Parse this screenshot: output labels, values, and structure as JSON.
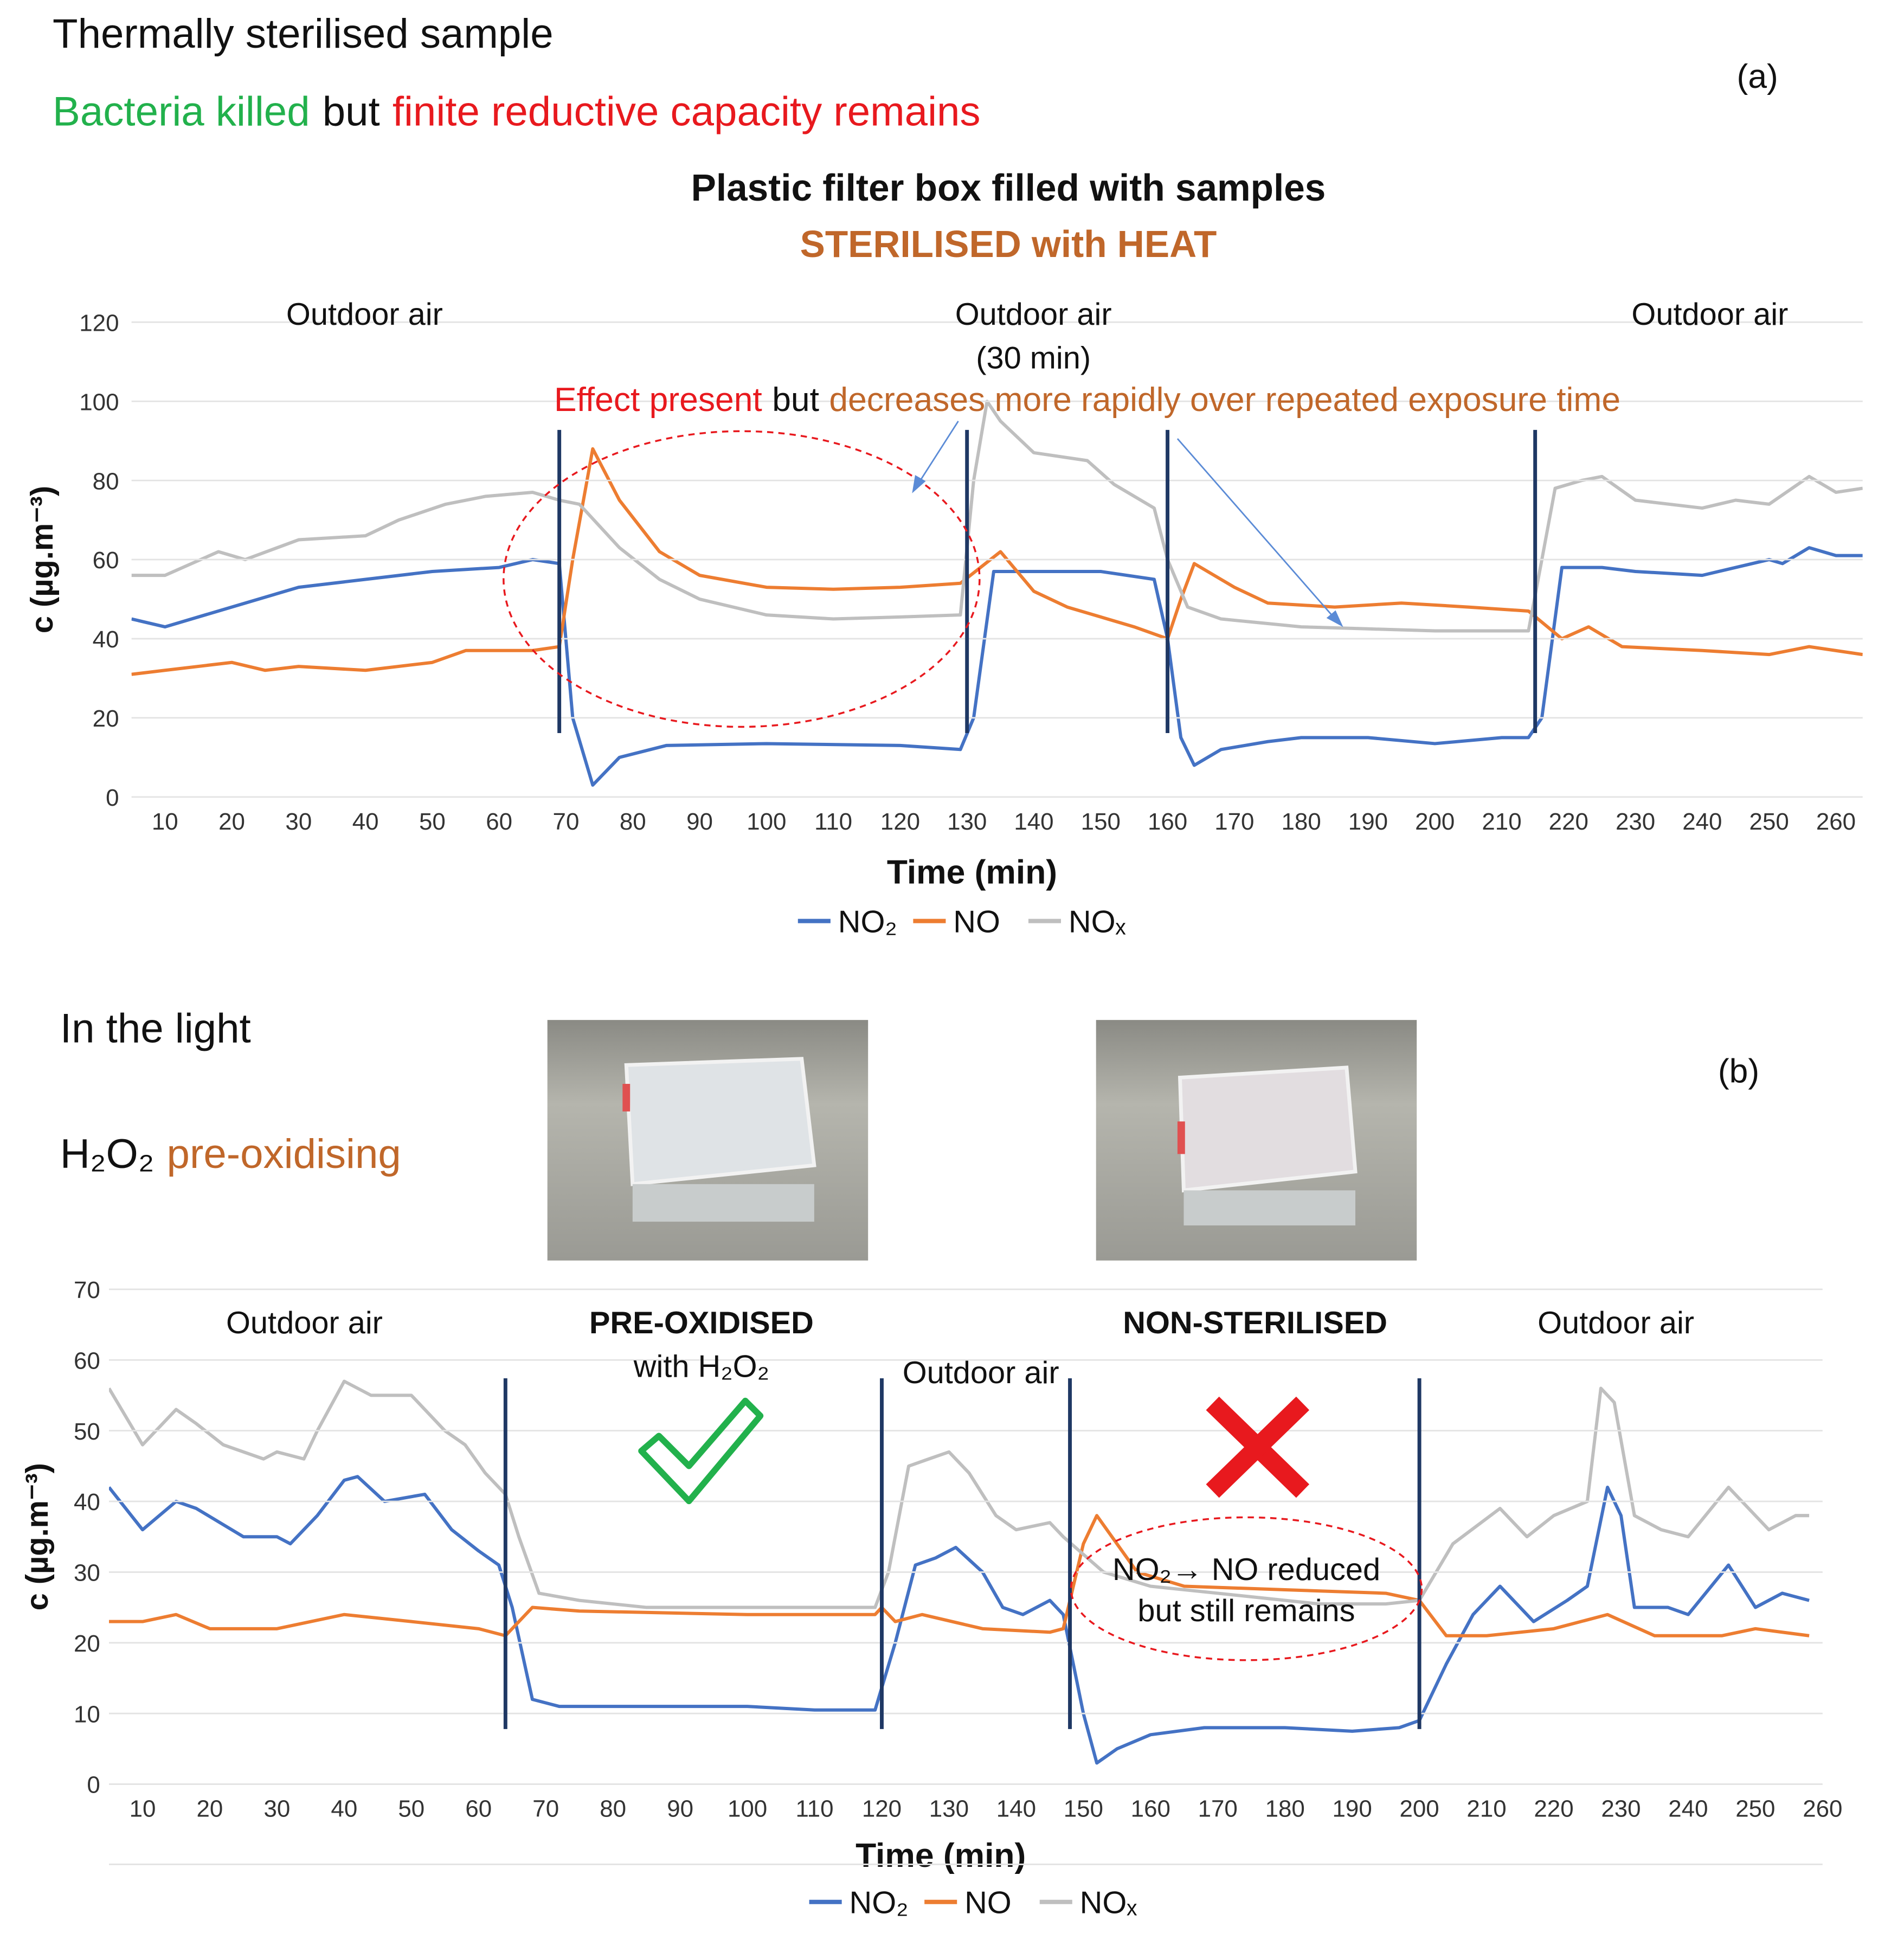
{
  "chart_data": [
    {
      "type": "line",
      "panel_label": "(a)",
      "heading": "Thermally sterilised sample",
      "subheading": [
        "Bacteria killed",
        "but",
        "finite reductive capacity remains"
      ],
      "title": "Plastic filter box filled with samples",
      "subtitle": "STERILISED with HEAT",
      "annotations": [
        "Outdoor air",
        "Outdoor air",
        "(30 min)",
        "Outdoor air"
      ],
      "effect_note": [
        "Effect present",
        "but",
        "decreases more rapidly over repeated exposure time"
      ],
      "xlabel": "Time (min)",
      "ylabel": "c (µg.m⁻³)",
      "xlim": [
        5,
        264
      ],
      "xticks": [
        10,
        20,
        30,
        40,
        50,
        60,
        70,
        80,
        90,
        100,
        110,
        120,
        130,
        140,
        150,
        160,
        170,
        180,
        190,
        200,
        210,
        220,
        230,
        240,
        250,
        260
      ],
      "ylim": [
        0,
        120
      ],
      "yticks": [
        0,
        20,
        40,
        60,
        80,
        100,
        120
      ],
      "grid": true,
      "vlines": [
        69,
        130,
        160,
        215
      ],
      "series": [
        {
          "name": "NO₂",
          "color": "#4472c4",
          "x": [
            5,
            10,
            20,
            30,
            40,
            50,
            60,
            65,
            69,
            71,
            74,
            78,
            85,
            100,
            120,
            129,
            131,
            134,
            140,
            150,
            158,
            160,
            162,
            164,
            168,
            175,
            180,
            190,
            200,
            210,
            214,
            216,
            219,
            225,
            230,
            240,
            250,
            252,
            256,
            260,
            264
          ],
          "values": [
            45,
            43,
            48,
            53,
            55,
            57,
            58,
            60,
            59,
            20,
            3,
            10,
            13,
            13.5,
            13,
            12,
            20,
            57,
            57,
            57,
            55,
            40,
            15,
            8,
            12,
            14,
            15,
            15,
            13.5,
            15,
            15,
            20,
            58,
            58,
            57,
            56,
            60,
            59,
            63,
            61,
            61
          ]
        },
        {
          "name": "NO",
          "color": "#ed7d31",
          "x": [
            5,
            10,
            20,
            25,
            30,
            40,
            50,
            55,
            65,
            69,
            71,
            74,
            78,
            84,
            90,
            100,
            110,
            120,
            129,
            132,
            135,
            140,
            145,
            155,
            160,
            162,
            164,
            170,
            175,
            185,
            195,
            205,
            214,
            219,
            223,
            228,
            240,
            250,
            256,
            264
          ],
          "values": [
            31,
            32,
            34,
            32,
            33,
            32,
            34,
            37,
            37,
            38,
            60,
            88,
            75,
            62,
            56,
            53,
            52.5,
            53,
            54,
            58,
            62,
            52,
            48,
            43,
            40,
            50,
            59,
            53,
            49,
            48,
            49,
            48,
            47,
            40,
            43,
            38,
            37,
            36,
            38,
            36
          ]
        },
        {
          "name": "NOₓ",
          "color": "#bfbfbf",
          "x": [
            5,
            10,
            18,
            22,
            30,
            40,
            45,
            52,
            58,
            65,
            69,
            72,
            78,
            84,
            90,
            100,
            110,
            120,
            129,
            131,
            133,
            135,
            140,
            148,
            152,
            158,
            160,
            163,
            168,
            180,
            190,
            200,
            210,
            214,
            216,
            218,
            222,
            225,
            230,
            240,
            245,
            250,
            256,
            260,
            264
          ],
          "values": [
            56,
            56,
            62,
            60,
            65,
            66,
            70,
            74,
            76,
            77,
            75,
            74,
            63,
            55,
            50,
            46,
            45,
            45.5,
            46,
            80,
            100,
            95,
            87,
            85,
            79,
            73,
            60,
            48,
            45,
            43,
            42.5,
            42,
            42,
            42,
            60,
            78,
            80,
            81,
            75,
            73,
            75,
            74,
            81,
            77,
            78
          ]
        }
      ]
    },
    {
      "type": "line",
      "panel_label": "(b)",
      "heading": "In the light",
      "subheading": [
        "H₂O₂",
        "pre-oxidising"
      ],
      "annotations": [
        "Outdoor air",
        "PRE-OXIDISED",
        "with H₂O₂",
        "Outdoor air",
        "NON-STERILISED",
        "Outdoor air",
        "NO₂→ NO reduced",
        "but still remains"
      ],
      "xlabel": "Time (min)",
      "ylabel": "c (µg.m⁻³)",
      "xlim": [
        5,
        260
      ],
      "xticks": [
        10,
        20,
        30,
        40,
        50,
        60,
        70,
        80,
        90,
        100,
        110,
        120,
        130,
        140,
        150,
        160,
        170,
        180,
        190,
        200,
        210,
        220,
        230,
        240,
        250,
        260
      ],
      "ylim": [
        0,
        70
      ],
      "yticks": [
        0,
        10,
        20,
        30,
        40,
        50,
        60,
        70
      ],
      "grid": true,
      "vlines": [
        64,
        120,
        148,
        200
      ],
      "series": [
        {
          "name": "NO₂",
          "color": "#4472c4",
          "x": [
            5,
            10,
            15,
            18,
            25,
            30,
            32,
            36,
            40,
            42,
            46,
            52,
            56,
            60,
            63,
            65,
            68,
            72,
            90,
            100,
            110,
            119,
            122,
            125,
            128,
            131,
            135,
            138,
            141,
            145,
            147,
            150,
            152,
            155,
            160,
            168,
            180,
            190,
            197,
            200,
            204,
            208,
            212,
            217,
            222,
            225,
            228,
            230,
            232,
            237,
            240,
            246,
            250,
            254,
            258
          ],
          "values": [
            42,
            36,
            40,
            39,
            35,
            35,
            34,
            38,
            43,
            43.5,
            40,
            41,
            36,
            33,
            31,
            25,
            12,
            11,
            11,
            11,
            10.5,
            10.5,
            20,
            31,
            32,
            33.5,
            30,
            25,
            24,
            26,
            24,
            10,
            3,
            5,
            7,
            8,
            8,
            7.5,
            8,
            9,
            17,
            24,
            28,
            23,
            26,
            28,
            42,
            38,
            25,
            25,
            24,
            31,
            25,
            27,
            26
          ]
        },
        {
          "name": "NO",
          "color": "#ed7d31",
          "x": [
            5,
            10,
            15,
            20,
            30,
            40,
            50,
            60,
            64,
            68,
            75,
            100,
            119,
            120,
            122,
            126,
            135,
            145,
            147,
            150,
            152,
            158,
            165,
            180,
            195,
            200,
            204,
            210,
            220,
            228,
            235,
            245,
            250,
            258
          ],
          "values": [
            23,
            23,
            24,
            22,
            22,
            24,
            23,
            22,
            21,
            25,
            24.5,
            24,
            24,
            25,
            23,
            24,
            22,
            21.5,
            22,
            34,
            38,
            30,
            28,
            27.5,
            27,
            26,
            21,
            21,
            22,
            24,
            21,
            21,
            22,
            21
          ]
        },
        {
          "name": "NOₓ",
          "color": "#bfbfbf",
          "x": [
            5,
            10,
            15,
            18,
            22,
            28,
            30,
            34,
            36,
            40,
            44,
            50,
            55,
            58,
            61,
            64,
            66,
            69,
            75,
            85,
            100,
            110,
            119,
            121,
            124,
            127,
            130,
            133,
            137,
            140,
            145,
            147,
            153,
            160,
            170,
            185,
            195,
            200,
            205,
            212,
            216,
            220,
            225,
            227,
            229,
            232,
            236,
            240,
            246,
            252,
            256,
            258
          ],
          "values": [
            56,
            48,
            53,
            51,
            48,
            46,
            47,
            46,
            50,
            57,
            55,
            55,
            50,
            48,
            44,
            41,
            35,
            27,
            26,
            25,
            25,
            25,
            25,
            30,
            45,
            46,
            47,
            44,
            38,
            36,
            37,
            35,
            30,
            28,
            27,
            25.5,
            25.5,
            26,
            34,
            39,
            35,
            38,
            40,
            56,
            54,
            38,
            36,
            35,
            42,
            36,
            38,
            38
          ]
        }
      ]
    }
  ]
}
